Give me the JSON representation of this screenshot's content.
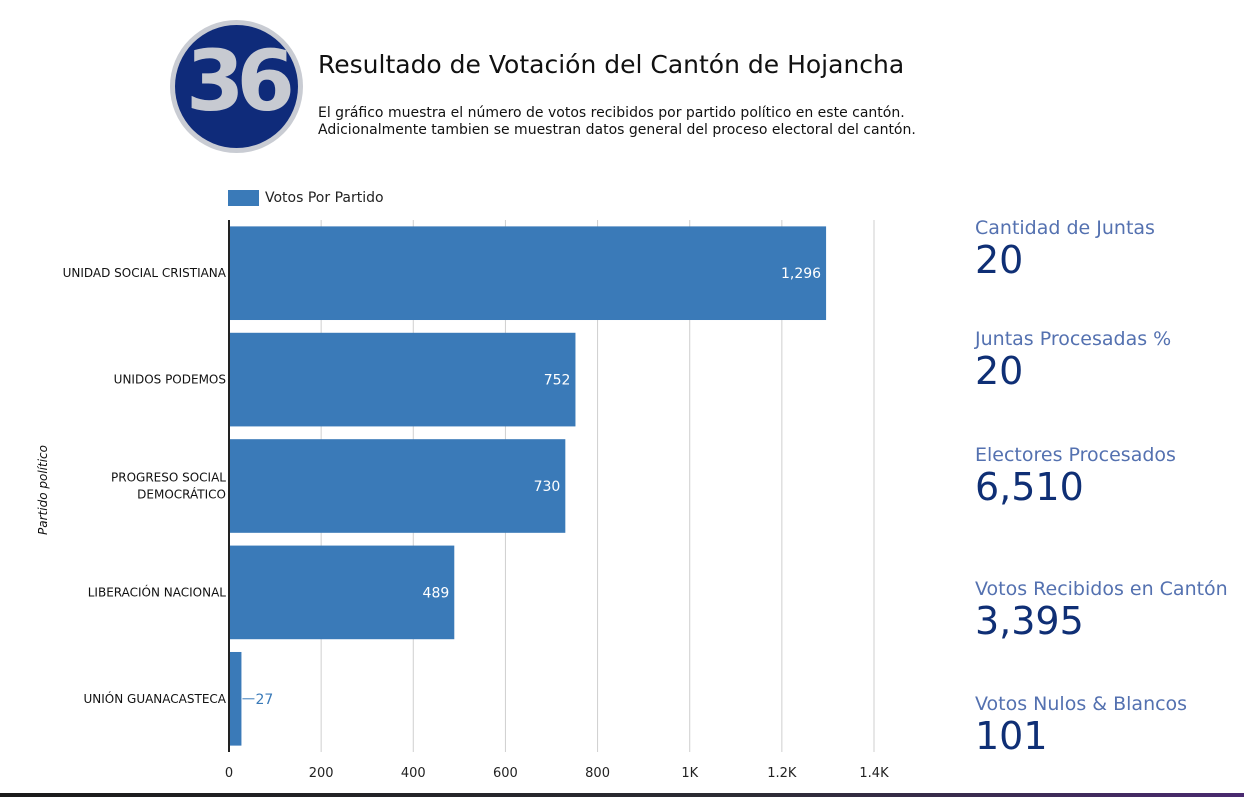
{
  "header": {
    "logo_text": "36",
    "title": "Resultado de Votación del Cantón de Hojancha",
    "description_lines": [
      "El gráfico muestra el número de votos recibidos por partido político en este cantón.",
      "Adicionalmente tambien se muestran datos general del proceso electoral del cantón."
    ]
  },
  "chart_data": {
    "type": "bar",
    "orientation": "horizontal",
    "categories": [
      "UNIDAD SOCIAL CRISTIANA",
      "UNIDOS PODEMOS",
      "PROGRESO SOCIAL DEMOCRÁTICO",
      "LIBERACIÓN NACIONAL",
      "UNIÓN GUANACASTECA"
    ],
    "category_lines": [
      [
        "UNIDAD SOCIAL CRISTIANA"
      ],
      [
        "UNIDOS PODEMOS"
      ],
      [
        "PROGRESO SOCIAL",
        "DEMOCRÁTICO"
      ],
      [
        "LIBERACIÓN NACIONAL"
      ],
      [
        "UNIÓN GUANACASTECA"
      ]
    ],
    "series": [
      {
        "name": "Votos Por Partido",
        "values": [
          1296,
          752,
          730,
          489,
          27
        ]
      }
    ],
    "value_labels": [
      "1,296",
      "752",
      "730",
      "489",
      "27"
    ],
    "xlabel": "",
    "ylabel": "Partido político",
    "xlim": [
      0,
      1400
    ],
    "x_ticks": [
      0,
      200,
      400,
      600,
      800,
      1000,
      1200,
      1400
    ],
    "x_tick_labels": [
      "0",
      "200",
      "400",
      "600",
      "800",
      "1K",
      "1.2K",
      "1.4K"
    ],
    "legend_position": "top-left",
    "grid": true,
    "bar_color": "#3a7ab8"
  },
  "stats": [
    {
      "label": "Cantidad de Juntas",
      "value": "20"
    },
    {
      "label": "Juntas Procesadas %",
      "value": "20"
    },
    {
      "label": "Electores Procesados",
      "value": "6,510"
    },
    {
      "label": "Votos Recibidos en Cantón",
      "value": "3,395"
    },
    {
      "label": "Votos Nulos & Blancos",
      "value": "101"
    }
  ]
}
